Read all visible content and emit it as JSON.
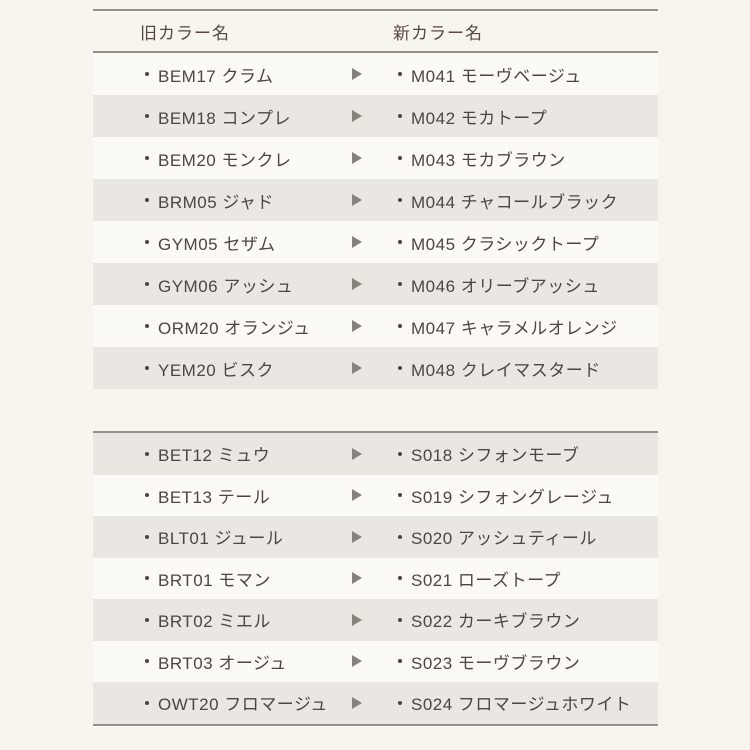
{
  "header": {
    "old_label": "旧カラー名",
    "new_label": "新カラー名"
  },
  "table": {
    "groups": [
      {
        "rows": [
          {
            "old": "BEM17 クラム",
            "new": "M041 モーヴベージュ"
          },
          {
            "old": "BEM18 コンプレ",
            "new": "M042 モカトープ"
          },
          {
            "old": "BEM20 モンクレ",
            "new": "M043 モカブラウン"
          },
          {
            "old": "BRM05 ジャド",
            "new": "M044 チャコールブラック"
          },
          {
            "old": "GYM05 セザム",
            "new": "M045 クラシックトープ"
          },
          {
            "old": "GYM06 アッシュ",
            "new": "M046 オリーブアッシュ"
          },
          {
            "old": "ORM20 オランジュ",
            "new": "M047 キャラメルオレンジ"
          },
          {
            "old": "YEM20 ビスク",
            "new": "M048 クレイマスタード"
          }
        ]
      },
      {
        "rows": [
          {
            "old": "BET12 ミュウ",
            "new": "S018 シフォンモーブ"
          },
          {
            "old": "BET13 テール",
            "new": "S019 シフォングレージュ"
          },
          {
            "old": "BLT01 ジュール",
            "new": "S020 アッシュティール"
          },
          {
            "old": "BRT01 モマン",
            "new": "S021 ローズトープ"
          },
          {
            "old": "BRT02 ミエル",
            "new": "S022 カーキブラウン"
          },
          {
            "old": "BRT03 オージュ",
            "new": "S023 モーヴブラウン"
          },
          {
            "old": "OWT20 フロマージュ",
            "new": "S024 フロマージュホワイト"
          }
        ]
      }
    ]
  },
  "icons": {
    "bullet": "・",
    "arrow": "▶"
  },
  "colors": {
    "page_background": "#f8f5ef",
    "row_plain": "#fcfaf6",
    "row_alt": "#eae6e2",
    "divider_line": "#96918b",
    "text": "#4b4642",
    "header_text": "#55493f",
    "arrow": "#87827c"
  }
}
